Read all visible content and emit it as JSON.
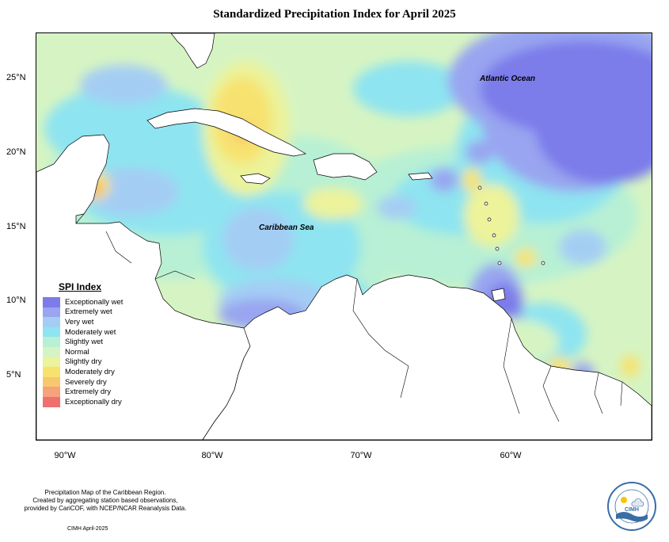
{
  "title": "Standardized Precipitation Index for April 2025",
  "lat_labels": [
    "25°N",
    "20°N",
    "15°N",
    "10°N",
    "5°N"
  ],
  "lon_labels": [
    "90°W",
    "80°W",
    "70°W",
    "60°W"
  ],
  "ocean_labels": {
    "atlantic": "Atlantic Ocean",
    "caribbean": "Caribbean Sea"
  },
  "legend": {
    "title": "SPI Index",
    "items": [
      {
        "label": "Exceptionally wet",
        "color": "#7b7bea"
      },
      {
        "label": "Extremely wet",
        "color": "#99a5f0"
      },
      {
        "label": "Very wet",
        "color": "#a4cdf4"
      },
      {
        "label": "Moderately wet",
        "color": "#8ee4f0"
      },
      {
        "label": "Slightly wet",
        "color": "#b7f0d4"
      },
      {
        "label": "Normal",
        "color": "#d6f4c3"
      },
      {
        "label": "Slightly dry",
        "color": "#ecf39a"
      },
      {
        "label": "Moderately dry",
        "color": "#f7e26f"
      },
      {
        "label": "Severely dry",
        "color": "#f8c86d"
      },
      {
        "label": "Extremely dry",
        "color": "#f6a27a"
      },
      {
        "label": "Exceptionally dry",
        "color": "#f07070"
      }
    ]
  },
  "footer_lines": [
    "Precipitation Map of the Caribbean Region.",
    "Created by aggregating station based observations,",
    "provided by CariCOF, with NCEP/NCAR Reanalysis Data."
  ],
  "credit": "CIMH April-2025",
  "logo_text": "CIMH"
}
